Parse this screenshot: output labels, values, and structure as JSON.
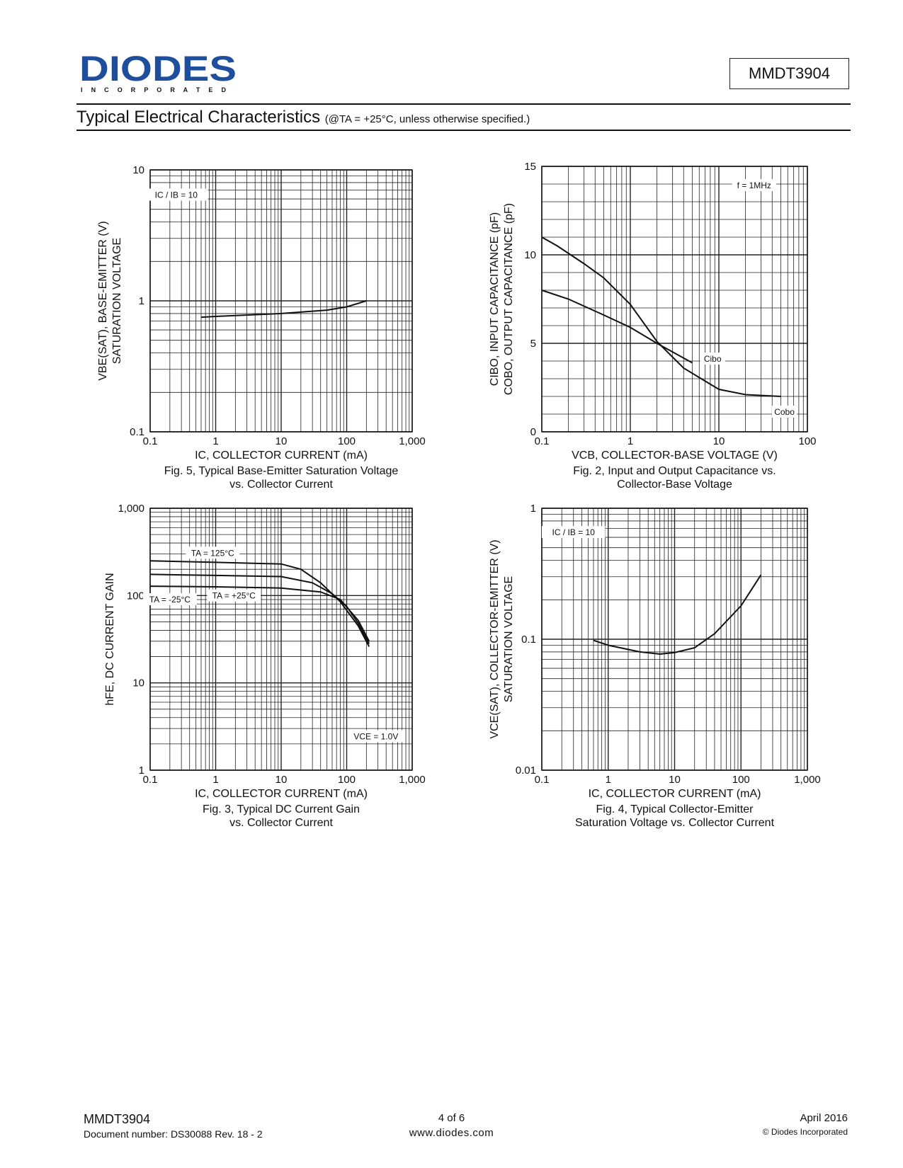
{
  "header": {
    "logo_text": "DIODES",
    "logo_subtext": "I N C O R P O R A T E D",
    "part_number": "MMDT3904",
    "section_title": "Typical Electrical Characteristics",
    "conditions": "(@TA = +25°C, unless otherwise specified.)"
  },
  "footer": {
    "part_number": "MMDT3904",
    "document_number": "Document number: DS30088 Rev. 18 - 2",
    "page": "4 of 6",
    "website": "www.diodes.com",
    "date": "April 2016",
    "copyright": "© Diodes Incorporated"
  },
  "colors": {
    "ink": "#111111",
    "logo_blue": "#1f4e9c"
  },
  "chart_data": [
    {
      "id": "fig5",
      "type": "line",
      "caption": [
        "Fig. 5, Typical Base-Emitter Saturation Voltage",
        "vs. Collector Current"
      ],
      "xlabel": "IC, COLLECTOR CURRENT (mA)",
      "ylabel": [
        "VBE(SAT), BASE-EMITTER (V)",
        "SATURATION VOLTAGE"
      ],
      "x_scale": "log",
      "y_scale": "log",
      "xlim": [
        0.1,
        1000
      ],
      "ylim": [
        0.1,
        10
      ],
      "x_ticks": [
        0.1,
        1,
        10,
        100,
        1000
      ],
      "x_tick_labels": [
        "0.1",
        "1",
        "10",
        "100",
        "1,000"
      ],
      "y_ticks": [
        0.1,
        1,
        10
      ],
      "y_tick_labels": [
        "0.1",
        "1",
        "10"
      ],
      "annotations": [
        {
          "text": "IC / IB = 10",
          "x": 0.25,
          "y": 6.2
        }
      ],
      "series": [
        {
          "points": [
            [
              0.6,
              0.75
            ],
            [
              1,
              0.76
            ],
            [
              10,
              0.8
            ],
            [
              50,
              0.85
            ],
            [
              100,
              0.9
            ],
            [
              200,
              1.0
            ]
          ]
        }
      ]
    },
    {
      "id": "fig2",
      "type": "line",
      "caption": [
        "Fig. 2, Input and Output Capacitance vs.",
        "Collector-Base Voltage"
      ],
      "xlabel": "VCB, COLLECTOR-BASE VOLTAGE (V)",
      "ylabel": [
        "CIBO, INPUT CAPACITANCE (pF)",
        "COBO, OUTPUT CAPACITANCE (pF)"
      ],
      "x_scale": "log",
      "y_scale": "linear",
      "xlim": [
        0.1,
        100
      ],
      "ylim": [
        0,
        15
      ],
      "x_ticks": [
        0.1,
        1,
        10,
        100
      ],
      "x_tick_labels": [
        "0.1",
        "1",
        "10",
        "100"
      ],
      "y_ticks": [
        0,
        5,
        10,
        15
      ],
      "y_tick_labels": [
        "0",
        "5",
        "10",
        "15"
      ],
      "annotations": [
        {
          "text": "f = 1MHz",
          "x": 25,
          "y": 13.8
        },
        {
          "text": "Cibo",
          "x": 8.5,
          "y": 4.0
        },
        {
          "text": "Cobo",
          "x": 55,
          "y": 1.0
        }
      ],
      "series": [
        {
          "name": "Cibo",
          "points": [
            [
              0.1,
              11.0
            ],
            [
              0.15,
              10.5
            ],
            [
              0.3,
              9.5
            ],
            [
              0.5,
              8.7
            ],
            [
              1,
              7.2
            ],
            [
              2,
              5.1
            ],
            [
              4,
              3.6
            ],
            [
              10,
              2.4
            ],
            [
              20,
              2.1
            ],
            [
              50,
              2.0
            ]
          ]
        },
        {
          "name": "Cobo",
          "points": [
            [
              0.1,
              8.0
            ],
            [
              0.2,
              7.5
            ],
            [
              0.5,
              6.6
            ],
            [
              1,
              5.9
            ],
            [
              2,
              5.0
            ],
            [
              5,
              3.9
            ]
          ]
        }
      ]
    },
    {
      "id": "fig3",
      "type": "line",
      "caption": [
        "Fig. 3, Typical DC Current Gain",
        "vs. Collector Current"
      ],
      "xlabel": "IC, COLLECTOR CURRENT (mA)",
      "ylabel": [
        "hFE, DC CURRENT GAIN"
      ],
      "x_scale": "log",
      "y_scale": "log",
      "xlim": [
        0.1,
        1000
      ],
      "ylim": [
        1,
        1000
      ],
      "x_ticks": [
        0.1,
        1,
        10,
        100,
        1000
      ],
      "x_tick_labels": [
        "0.1",
        "1",
        "10",
        "100",
        "1,000"
      ],
      "y_ticks": [
        1,
        10,
        100,
        1000
      ],
      "y_tick_labels": [
        "1",
        "10",
        "100",
        "1,000"
      ],
      "annotations": [
        {
          "text": "TA = 125°C",
          "x": 0.9,
          "y": 290
        },
        {
          "text": "TA = +25°C",
          "x": 1.9,
          "y": 94
        },
        {
          "text": "TA = -25°C",
          "x": 0.2,
          "y": 85
        },
        {
          "text": "VCE = 1.0V",
          "x": 280,
          "y": 2.3
        }
      ],
      "series": [
        {
          "name": "TA = 125°C",
          "points": [
            [
              0.1,
              250
            ],
            [
              1,
              240
            ],
            [
              10,
              230
            ],
            [
              20,
              200
            ],
            [
              40,
              140
            ],
            [
              80,
              85
            ],
            [
              150,
              45
            ],
            [
              220,
              26
            ]
          ]
        },
        {
          "name": "TA = +25°C",
          "points": [
            [
              0.1,
              175
            ],
            [
              1,
              170
            ],
            [
              10,
              165
            ],
            [
              30,
              140
            ],
            [
              60,
              105
            ],
            [
              100,
              75
            ],
            [
              150,
              48
            ],
            [
              220,
              28
            ]
          ]
        },
        {
          "name": "TA = -25°C",
          "points": [
            [
              0.1,
              128
            ],
            [
              1,
              126
            ],
            [
              10,
              122
            ],
            [
              40,
              110
            ],
            [
              80,
              90
            ],
            [
              150,
              52
            ],
            [
              220,
              30
            ]
          ]
        }
      ]
    },
    {
      "id": "fig4",
      "type": "line",
      "caption": [
        "Fig. 4, Typical Collector-Emitter",
        "Saturation Voltage vs. Collector Current"
      ],
      "xlabel": "IC, COLLECTOR CURRENT (mA)",
      "ylabel": [
        "VCE(SAT), COLLECTOR-EMITTER (V)",
        "SATURATION VOLTAGE"
      ],
      "x_scale": "log",
      "y_scale": "log",
      "xlim": [
        0.1,
        1000
      ],
      "ylim": [
        0.01,
        1
      ],
      "x_ticks": [
        0.1,
        1,
        10,
        100,
        1000
      ],
      "x_tick_labels": [
        "0.1",
        "1",
        "10",
        "100",
        "1,000"
      ],
      "y_ticks": [
        0.01,
        0.1,
        1
      ],
      "y_tick_labels": [
        "0.01",
        "0.1",
        "1"
      ],
      "annotations": [
        {
          "text": "IC / IB = 10",
          "x": 0.3,
          "y": 0.63
        }
      ],
      "series": [
        {
          "points": [
            [
              0.6,
              0.098
            ],
            [
              1,
              0.09
            ],
            [
              3,
              0.08
            ],
            [
              6,
              0.077
            ],
            [
              10,
              0.079
            ],
            [
              20,
              0.086
            ],
            [
              40,
              0.11
            ],
            [
              100,
              0.18
            ],
            [
              200,
              0.31
            ]
          ]
        }
      ]
    }
  ]
}
